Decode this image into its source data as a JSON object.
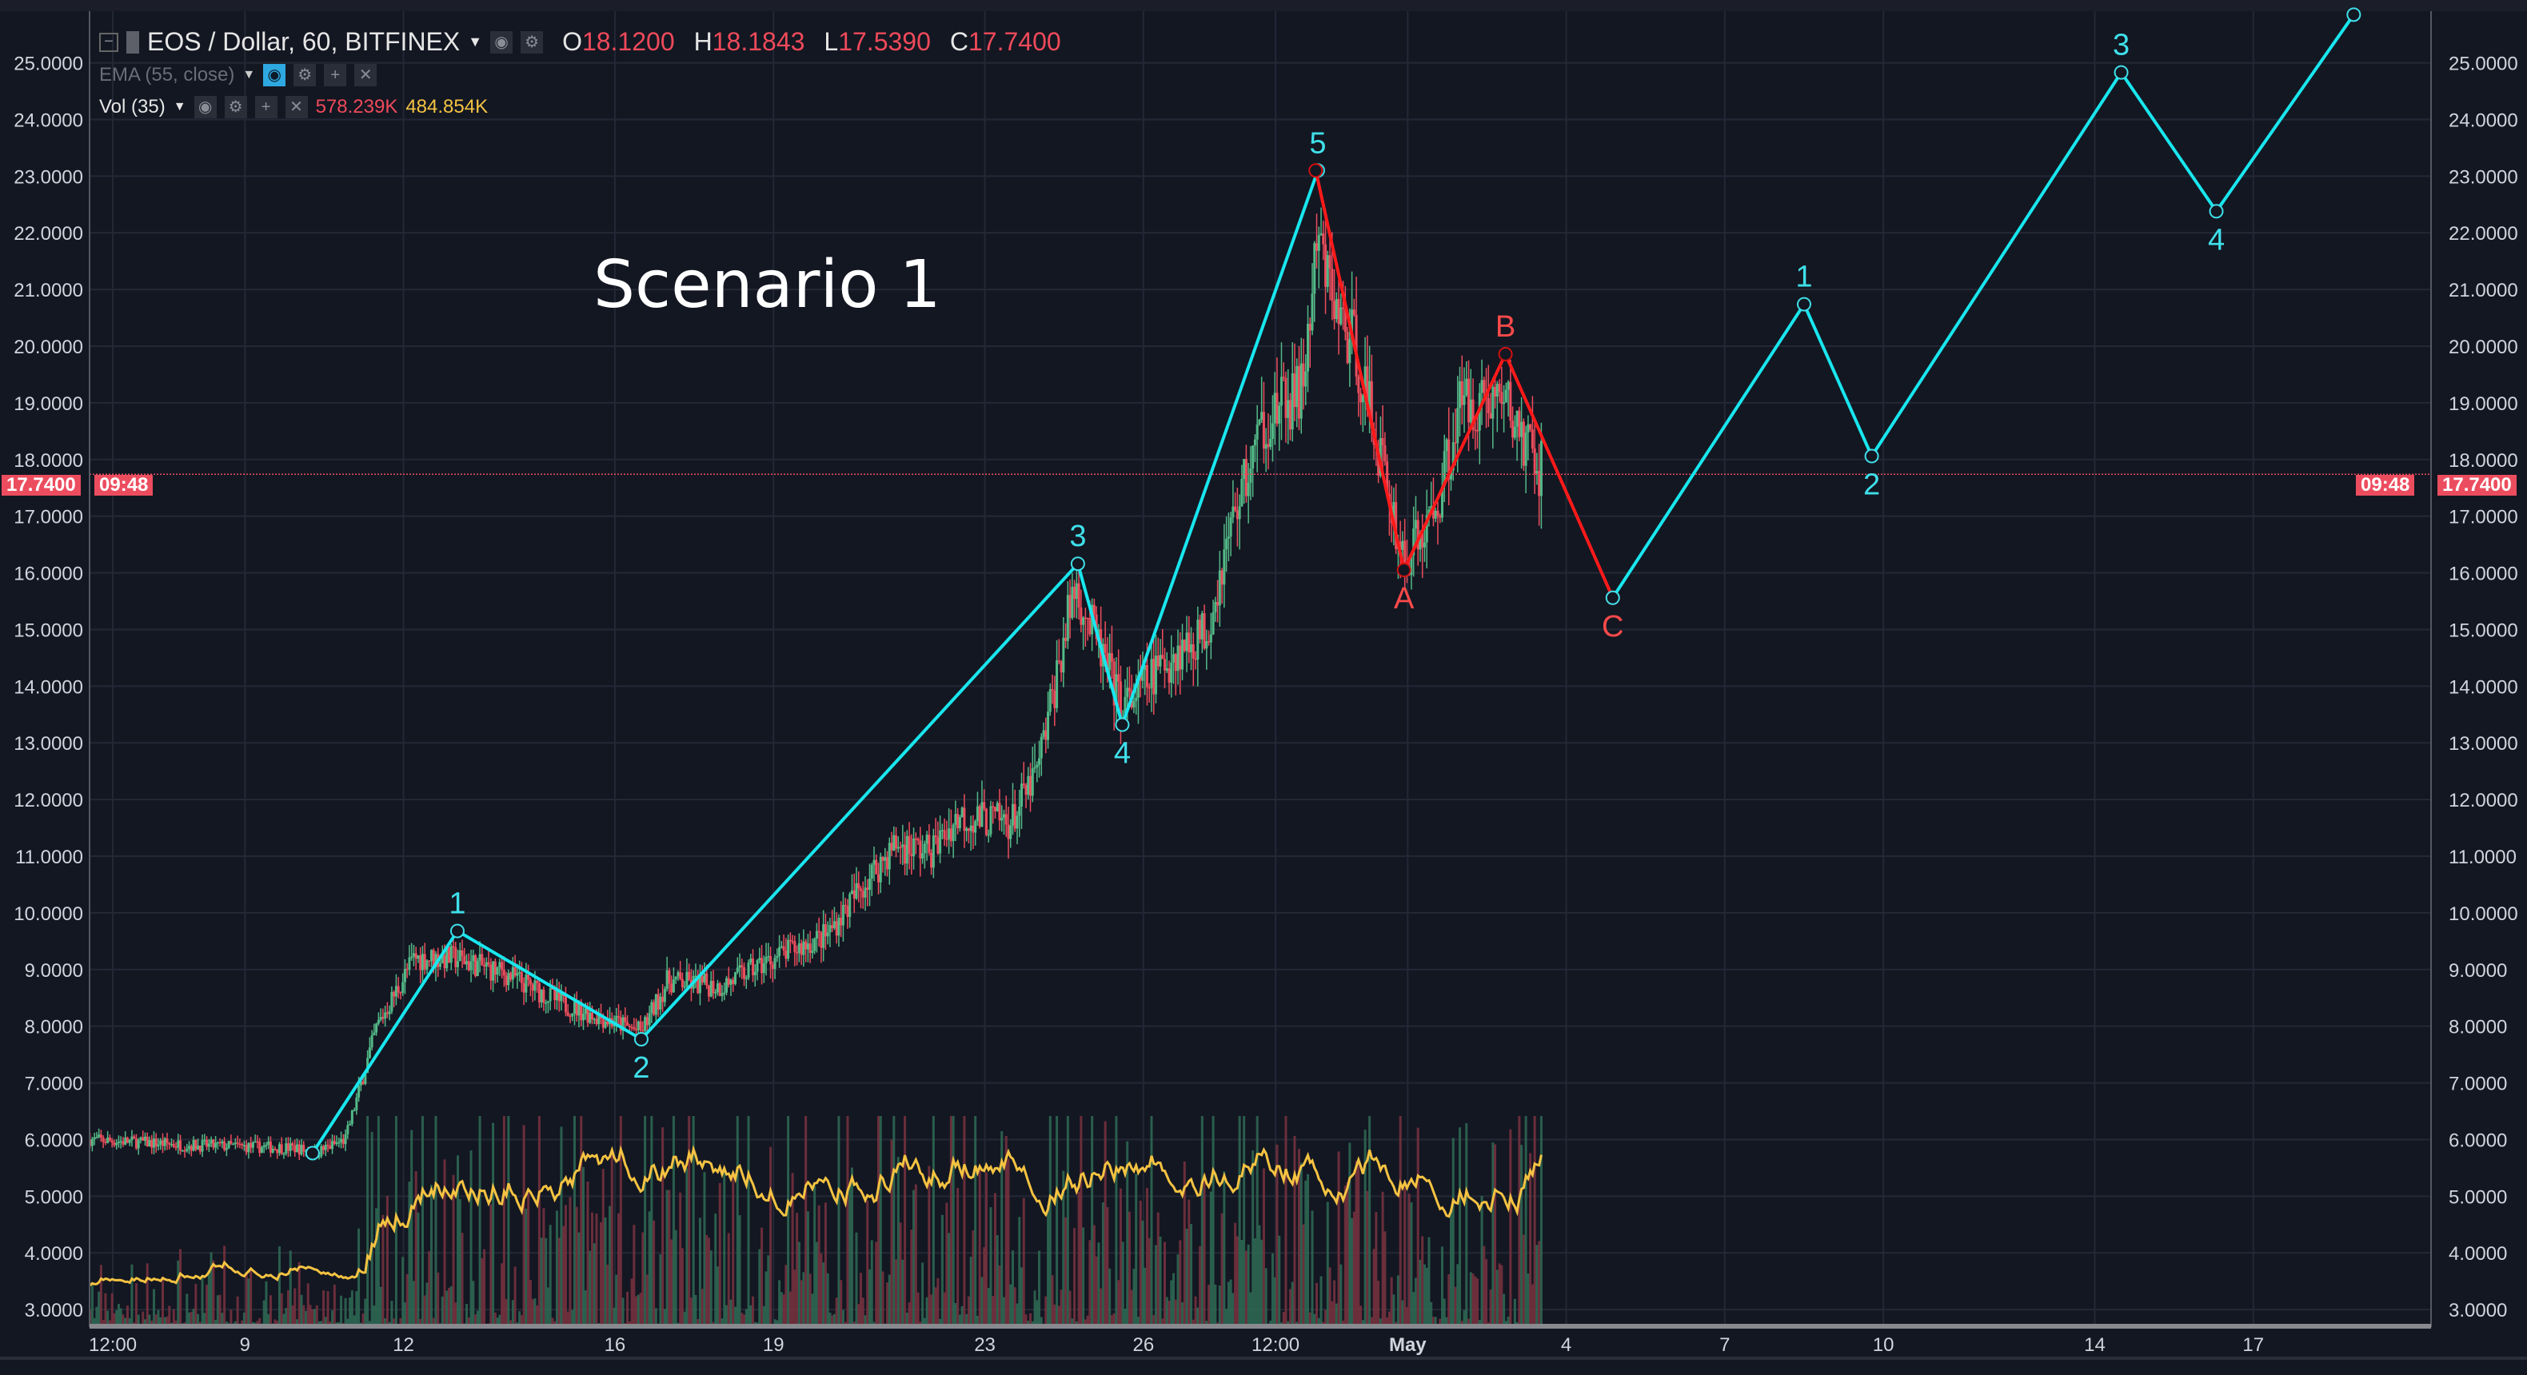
{
  "header": {
    "symbol": "EOS / Dollar, 60, BITFINEX",
    "open_label": "O",
    "open": "18.1200",
    "high_label": "H",
    "high": "18.1843",
    "low_label": "L",
    "low": "17.5390",
    "close_label": "C",
    "close": "17.7400"
  },
  "indicators": {
    "ema": "EMA (55, close)",
    "vol": "Vol (35)",
    "vol_value": "578.239K",
    "vol_ma_value": "484.854K"
  },
  "icons": [
    "collapse-icon",
    "flag-icon",
    "eye-icon",
    "gear-icon",
    "plus-icon",
    "close-icon",
    "dropdown-icon"
  ],
  "price_badge": {
    "price": "17.7400",
    "countdown": "09:48"
  },
  "annotation": "Scenario 1",
  "colors": {
    "bg": "#131722",
    "grid": "#242836",
    "up": "#53b987",
    "down": "#eb4d5c",
    "impulse": "#19e6ee",
    "corrective": "#ff1a1a",
    "vol_ma": "#f5c342"
  },
  "chart_data": {
    "type": "candlestick",
    "title": "EOS / Dollar, 60, BITFINEX",
    "ylim": [
      3,
      25
    ],
    "y_ticks": [
      "25.0000",
      "24.0000",
      "23.0000",
      "22.0000",
      "21.0000",
      "20.0000",
      "19.0000",
      "18.0000",
      "17.0000",
      "16.0000",
      "15.0000",
      "14.0000",
      "13.0000",
      "12.0000",
      "11.0000",
      "10.0000",
      "9.0000",
      "8.0000",
      "7.0000",
      "6.0000",
      "5.0000",
      "4.0000",
      "3.0000"
    ],
    "x_ticks": [
      {
        "label": "12:00",
        "day": 6.5
      },
      {
        "label": "9",
        "day": 9
      },
      {
        "label": "12",
        "day": 12
      },
      {
        "label": "16",
        "day": 16
      },
      {
        "label": "19",
        "day": 19
      },
      {
        "label": "23",
        "day": 23
      },
      {
        "label": "26",
        "day": 26
      },
      {
        "label": "12:00",
        "day": 28.5
      },
      {
        "label": "May",
        "day": 31
      },
      {
        "label": "4",
        "day": 34
      },
      {
        "label": "7",
        "day": 37
      },
      {
        "label": "10",
        "day": 40
      },
      {
        "label": "14",
        "day": 44
      },
      {
        "label": "17",
        "day": 47
      }
    ],
    "current_price": 17.74,
    "price_path": [
      [
        6.07,
        6.0
      ],
      [
        8,
        5.9
      ],
      [
        10,
        5.85
      ],
      [
        10.3,
        5.75
      ],
      [
        10.9,
        6.0
      ],
      [
        11.5,
        8.0
      ],
      [
        12.2,
        9.2
      ],
      [
        13,
        9.2
      ],
      [
        14,
        8.9
      ],
      [
        15,
        8.4
      ],
      [
        16.5,
        7.9
      ],
      [
        17,
        8.8
      ],
      [
        18,
        8.7
      ],
      [
        19,
        9.2
      ],
      [
        20,
        9.6
      ],
      [
        20.7,
        10.5
      ],
      [
        21.3,
        11.2
      ],
      [
        22,
        11.1
      ],
      [
        22.5,
        11.7
      ],
      [
        23.5,
        11.6
      ],
      [
        24,
        12.5
      ],
      [
        24.7,
        15.8
      ],
      [
        25.6,
        13.6
      ],
      [
        26.5,
        14.5
      ],
      [
        27.2,
        15.0
      ],
      [
        27.7,
        17.0
      ],
      [
        28.3,
        18.7
      ],
      [
        29,
        19.2
      ],
      [
        29.3,
        21.8
      ],
      [
        29.7,
        20.5
      ],
      [
        30,
        20.0
      ],
      [
        30.5,
        18.0
      ],
      [
        30.93,
        16.2
      ],
      [
        31.5,
        17.0
      ],
      [
        32,
        19.0
      ],
      [
        32.8,
        19.1
      ],
      [
        33.2,
        18.3
      ],
      [
        33.57,
        17.74
      ]
    ],
    "waves": [
      {
        "name": "impulse-1",
        "color": "impulse",
        "points": [
          {
            "day": 10.28,
            "price": 5.76,
            "label": ""
          },
          {
            "day": 13.02,
            "price": 9.68,
            "label": "1"
          },
          {
            "day": 16.5,
            "price": 7.77,
            "label": "2"
          },
          {
            "day": 24.76,
            "price": 16.16,
            "label": "3"
          },
          {
            "day": 25.6,
            "price": 13.32,
            "label": "4"
          },
          {
            "day": 29.3,
            "price": 23.1,
            "label": "5"
          }
        ]
      },
      {
        "name": "correction-abc",
        "color": "corrective",
        "points": [
          {
            "day": 29.26,
            "price": 23.1,
            "label": ""
          },
          {
            "day": 30.93,
            "price": 16.05,
            "label": "A"
          },
          {
            "day": 32.85,
            "price": 19.86,
            "label": "B"
          },
          {
            "day": 34.88,
            "price": 15.56,
            "label": "C"
          }
        ]
      },
      {
        "name": "impulse-2",
        "color": "impulse",
        "points": [
          {
            "day": 34.88,
            "price": 15.56,
            "label": ""
          },
          {
            "day": 38.5,
            "price": 20.74,
            "label": "1"
          },
          {
            "day": 39.78,
            "price": 18.06,
            "label": "2"
          },
          {
            "day": 44.5,
            "price": 24.83,
            "label": "3"
          },
          {
            "day": 46.3,
            "price": 22.38,
            "label": "4"
          },
          {
            "day": 48.9,
            "price": 25.85,
            "label": ""
          }
        ]
      }
    ]
  }
}
